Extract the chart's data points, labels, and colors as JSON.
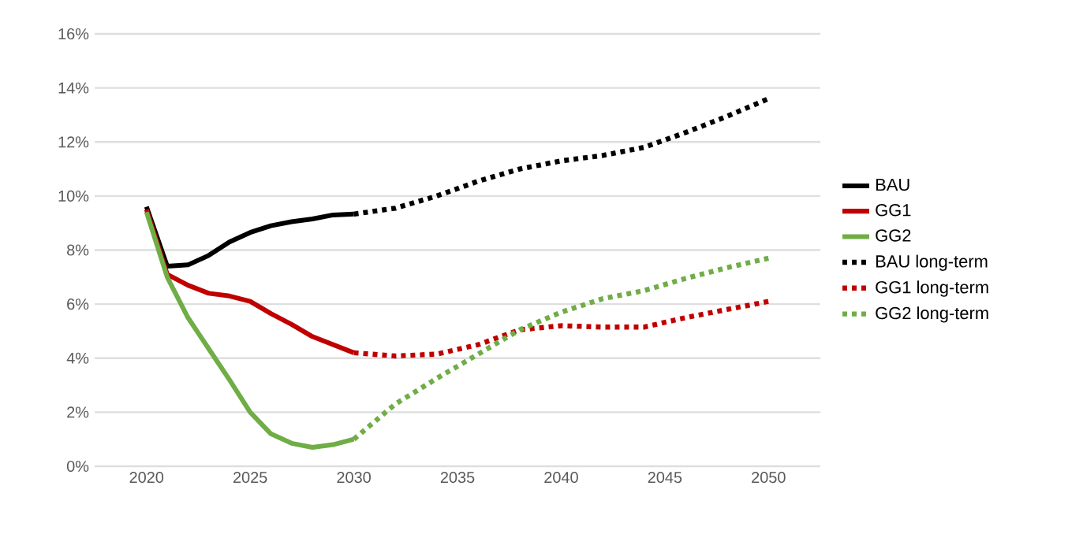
{
  "chart_data": {
    "type": "line",
    "xlim": [
      2017.5,
      2052.5
    ],
    "xticks": [
      2020,
      2025,
      2030,
      2035,
      2040,
      2045,
      2050
    ],
    "ylim": [
      0,
      16
    ],
    "yticks": [
      {
        "value": 0,
        "label": "0%"
      },
      {
        "value": 2,
        "label": "2%"
      },
      {
        "value": 4,
        "label": "4%"
      },
      {
        "value": 6,
        "label": "6%"
      },
      {
        "value": 8,
        "label": "8%"
      },
      {
        "value": 10,
        "label": "10%"
      },
      {
        "value": 12,
        "label": "12%"
      },
      {
        "value": 14,
        "label": "14%"
      },
      {
        "value": 16,
        "label": "16%"
      }
    ],
    "grid": "y",
    "legend": "right",
    "marker": "none",
    "series": [
      {
        "name": "BAU",
        "color": "#000000",
        "line_style": "solid",
        "x": [
          2020,
          2021,
          2022,
          2023,
          2024,
          2025,
          2026,
          2027,
          2028,
          2029,
          2030
        ],
        "values": [
          9.6,
          7.4,
          7.45,
          7.8,
          8.3,
          8.65,
          8.9,
          9.05,
          9.15,
          9.3,
          9.33
        ]
      },
      {
        "name": "GG1",
        "color": "#c00000",
        "line_style": "solid",
        "x": [
          2020,
          2021,
          2022,
          2023,
          2024,
          2025,
          2026,
          2027,
          2028,
          2029,
          2030
        ],
        "values": [
          9.5,
          7.1,
          6.7,
          6.4,
          6.3,
          6.1,
          5.65,
          5.25,
          4.8,
          4.5,
          4.2
        ]
      },
      {
        "name": "GG2",
        "color": "#70ad47",
        "line_style": "solid",
        "x": [
          2020,
          2021,
          2022,
          2023,
          2024,
          2025,
          2026,
          2027,
          2028,
          2029,
          2030
        ],
        "values": [
          9.4,
          7.0,
          5.5,
          4.35,
          3.2,
          2.0,
          1.2,
          0.85,
          0.7,
          0.8,
          1.0
        ]
      },
      {
        "name": "BAU long-term",
        "color": "#000000",
        "line_style": "dotted",
        "x": [
          2030,
          2032,
          2034,
          2036,
          2038,
          2040,
          2042,
          2044,
          2046,
          2048,
          2050
        ],
        "values": [
          9.33,
          9.55,
          10.0,
          10.55,
          11.0,
          11.3,
          11.5,
          11.8,
          12.35,
          12.95,
          13.6
        ]
      },
      {
        "name": "GG1 long-term",
        "color": "#c00000",
        "line_style": "dotted",
        "x": [
          2030,
          2032,
          2034,
          2036,
          2038,
          2040,
          2042,
          2044,
          2046,
          2048,
          2050
        ],
        "values": [
          4.2,
          4.08,
          4.15,
          4.5,
          5.05,
          5.2,
          5.15,
          5.15,
          5.5,
          5.8,
          6.1
        ]
      },
      {
        "name": "GG2 long-term",
        "color": "#70ad47",
        "line_style": "dotted",
        "x": [
          2030,
          2032,
          2034,
          2036,
          2038,
          2040,
          2042,
          2044,
          2046,
          2048,
          2050
        ],
        "values": [
          1.0,
          2.3,
          3.25,
          4.15,
          5.05,
          5.7,
          6.2,
          6.5,
          6.95,
          7.35,
          7.7
        ]
      }
    ]
  }
}
